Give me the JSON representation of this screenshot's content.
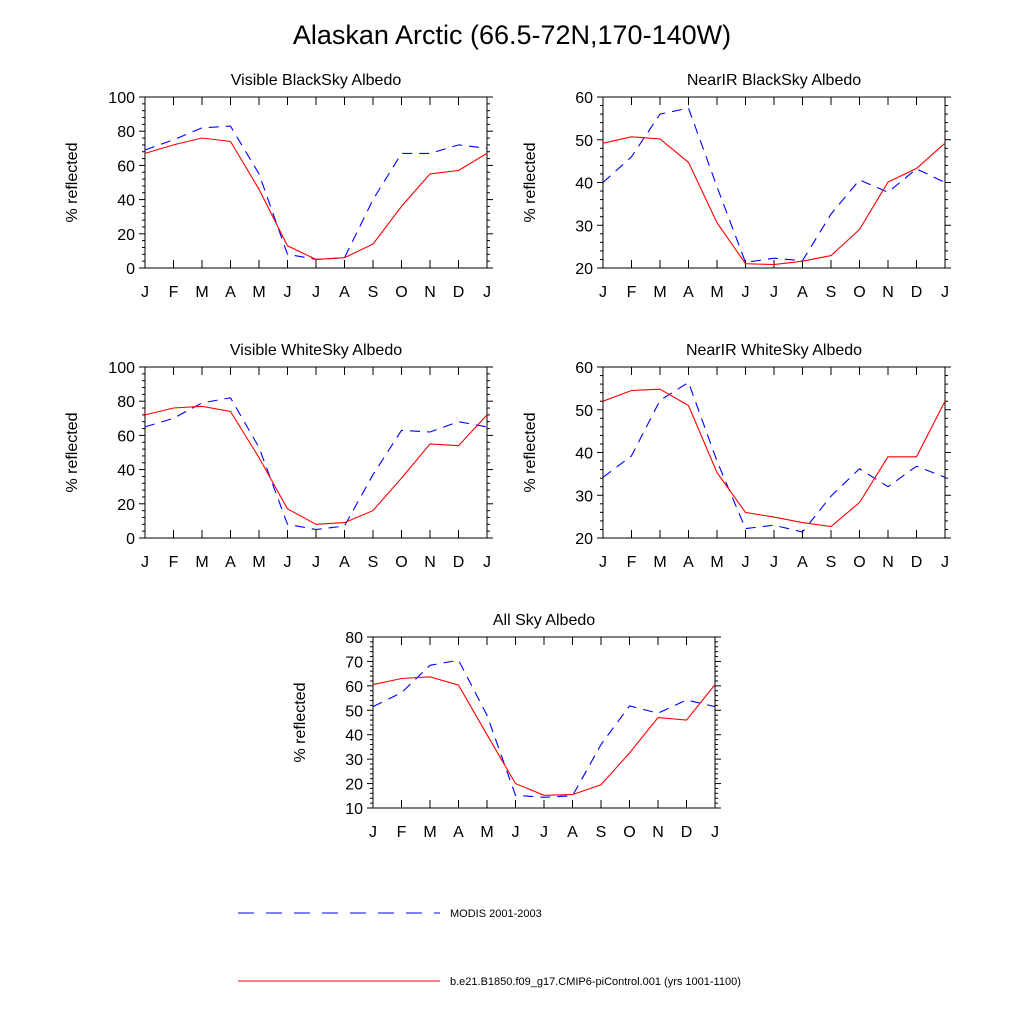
{
  "title": "Alaskan Arctic (66.5-72N,170-140W)",
  "legend": [
    {
      "label": "MODIS 2001-2003",
      "color": "#0000ff",
      "style": "dashed"
    },
    {
      "label": "b.e21.B1850.f09_g17.CMIP6-piControl.001 (yrs 1001-1100)",
      "color": "#ff0000",
      "style": "solid"
    }
  ],
  "chart_data": [
    {
      "type": "line",
      "title": "Visible BlackSky Albedo",
      "xlabel": "",
      "ylabel": "% reflected",
      "categories": [
        "J",
        "F",
        "M",
        "A",
        "M",
        "J",
        "J",
        "A",
        "S",
        "O",
        "N",
        "D",
        "J"
      ],
      "ylim": [
        0,
        100
      ],
      "yticks": [
        0,
        20,
        40,
        60,
        80,
        100
      ],
      "series": [
        {
          "name": "MODIS 2001-2003",
          "values": [
            69,
            75,
            82,
            83,
            55,
            8,
            5,
            6,
            40,
            67,
            67,
            72,
            70
          ]
        },
        {
          "name": "b.e21.B1850.f09_g17.CMIP6-piControl.001 (yrs 1001-1100)",
          "values": [
            67,
            72,
            76,
            74,
            46,
            13,
            5,
            6,
            14,
            36,
            55,
            57,
            67
          ]
        }
      ]
    },
    {
      "type": "line",
      "title": "NearIR BlackSky Albedo",
      "xlabel": "",
      "ylabel": "% reflected",
      "categories": [
        "J",
        "F",
        "M",
        "A",
        "M",
        "J",
        "J",
        "A",
        "S",
        "O",
        "N",
        "D",
        "J"
      ],
      "ylim": [
        20,
        60
      ],
      "yticks": [
        20,
        30,
        40,
        50,
        60
      ],
      "series": [
        {
          "name": "MODIS 2001-2003",
          "values": [
            40,
            46,
            56,
            57.4,
            39,
            21.3,
            22.3,
            21.7,
            32.6,
            40.6,
            37.7,
            43.2,
            40
          ]
        },
        {
          "name": "b.e21.B1850.f09_g17.CMIP6-piControl.001 (yrs 1001-1100)",
          "values": [
            49.2,
            50.7,
            50.2,
            44.7,
            30.6,
            21,
            20.8,
            21.6,
            22.9,
            29,
            40.1,
            43.3,
            49.2
          ]
        }
      ]
    },
    {
      "type": "line",
      "title": "Visible WhiteSky Albedo",
      "xlabel": "",
      "ylabel": "% reflected",
      "categories": [
        "J",
        "F",
        "M",
        "A",
        "M",
        "J",
        "J",
        "A",
        "S",
        "O",
        "N",
        "D",
        "J"
      ],
      "ylim": [
        0,
        100
      ],
      "yticks": [
        0,
        20,
        40,
        60,
        80,
        100
      ],
      "series": [
        {
          "name": "MODIS 2001-2003",
          "values": [
            65,
            70,
            79,
            82,
            53,
            8,
            5,
            7,
            37,
            63,
            62,
            68,
            65
          ]
        },
        {
          "name": "b.e21.B1850.f09_g17.CMIP6-piControl.001 (yrs 1001-1100)",
          "values": [
            72,
            76,
            77,
            74,
            47,
            17,
            8,
            9,
            16,
            35,
            55,
            54,
            72
          ]
        }
      ]
    },
    {
      "type": "line",
      "title": "NearIR WhiteSky Albedo",
      "xlabel": "",
      "ylabel": "% reflected",
      "categories": [
        "J",
        "F",
        "M",
        "A",
        "M",
        "J",
        "J",
        "A",
        "S",
        "O",
        "N",
        "D",
        "J"
      ],
      "ylim": [
        20,
        60
      ],
      "yticks": [
        20,
        30,
        40,
        50,
        60
      ],
      "series": [
        {
          "name": "MODIS 2001-2003",
          "values": [
            34.2,
            39.2,
            52.2,
            56.4,
            38,
            22.2,
            23,
            21.4,
            29.8,
            36.2,
            32,
            36.8,
            34.2
          ]
        },
        {
          "name": "b.e21.B1850.f09_g17.CMIP6-piControl.001 (yrs 1001-1100)",
          "values": [
            52,
            54.5,
            54.8,
            51,
            35.3,
            26,
            24.9,
            23.6,
            22.7,
            28.3,
            39,
            39,
            52
          ]
        }
      ]
    },
    {
      "type": "line",
      "title": "All Sky Albedo",
      "xlabel": "",
      "ylabel": "% reflected",
      "categories": [
        "J",
        "F",
        "M",
        "A",
        "M",
        "J",
        "J",
        "A",
        "S",
        "O",
        "N",
        "D",
        "J"
      ],
      "ylim": [
        10,
        80
      ],
      "yticks": [
        10,
        20,
        30,
        40,
        50,
        60,
        70,
        80
      ],
      "series": [
        {
          "name": "MODIS 2001-2003",
          "values": [
            51.5,
            57.2,
            68.4,
            70.5,
            48,
            15.2,
            14.4,
            15,
            36,
            51.8,
            48.8,
            54.2,
            51.5
          ]
        },
        {
          "name": "b.e21.B1850.f09_g17.CMIP6-piControl.001 (yrs 1001-1100)",
          "values": [
            60.5,
            63,
            63.7,
            60.3,
            40,
            20,
            15.2,
            15.5,
            19.5,
            32.5,
            47,
            46,
            60.5
          ]
        }
      ]
    }
  ]
}
